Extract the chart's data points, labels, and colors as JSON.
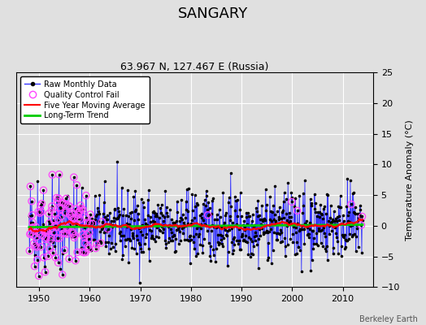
{
  "title": "SANGARY",
  "subtitle": "63.967 N, 127.467 E (Russia)",
  "ylabel": "Temperature Anomaly (°C)",
  "xlabel_note": "Berkeley Earth",
  "ylim": [
    -10,
    25
  ],
  "yticks": [
    -10,
    -5,
    0,
    5,
    10,
    15,
    20,
    25
  ],
  "xlim": [
    1945.5,
    2016
  ],
  "xticks": [
    1950,
    1960,
    1970,
    1980,
    1990,
    2000,
    2010
  ],
  "start_year": 1948,
  "end_year": 2014,
  "line_color": "#3333ff",
  "dot_color": "#000000",
  "qc_color": "#ff44ff",
  "moving_avg_color": "#ff0000",
  "trend_color": "#00cc00",
  "background_color": "#e0e0e0",
  "grid_color": "#ffffff",
  "seed": 42
}
